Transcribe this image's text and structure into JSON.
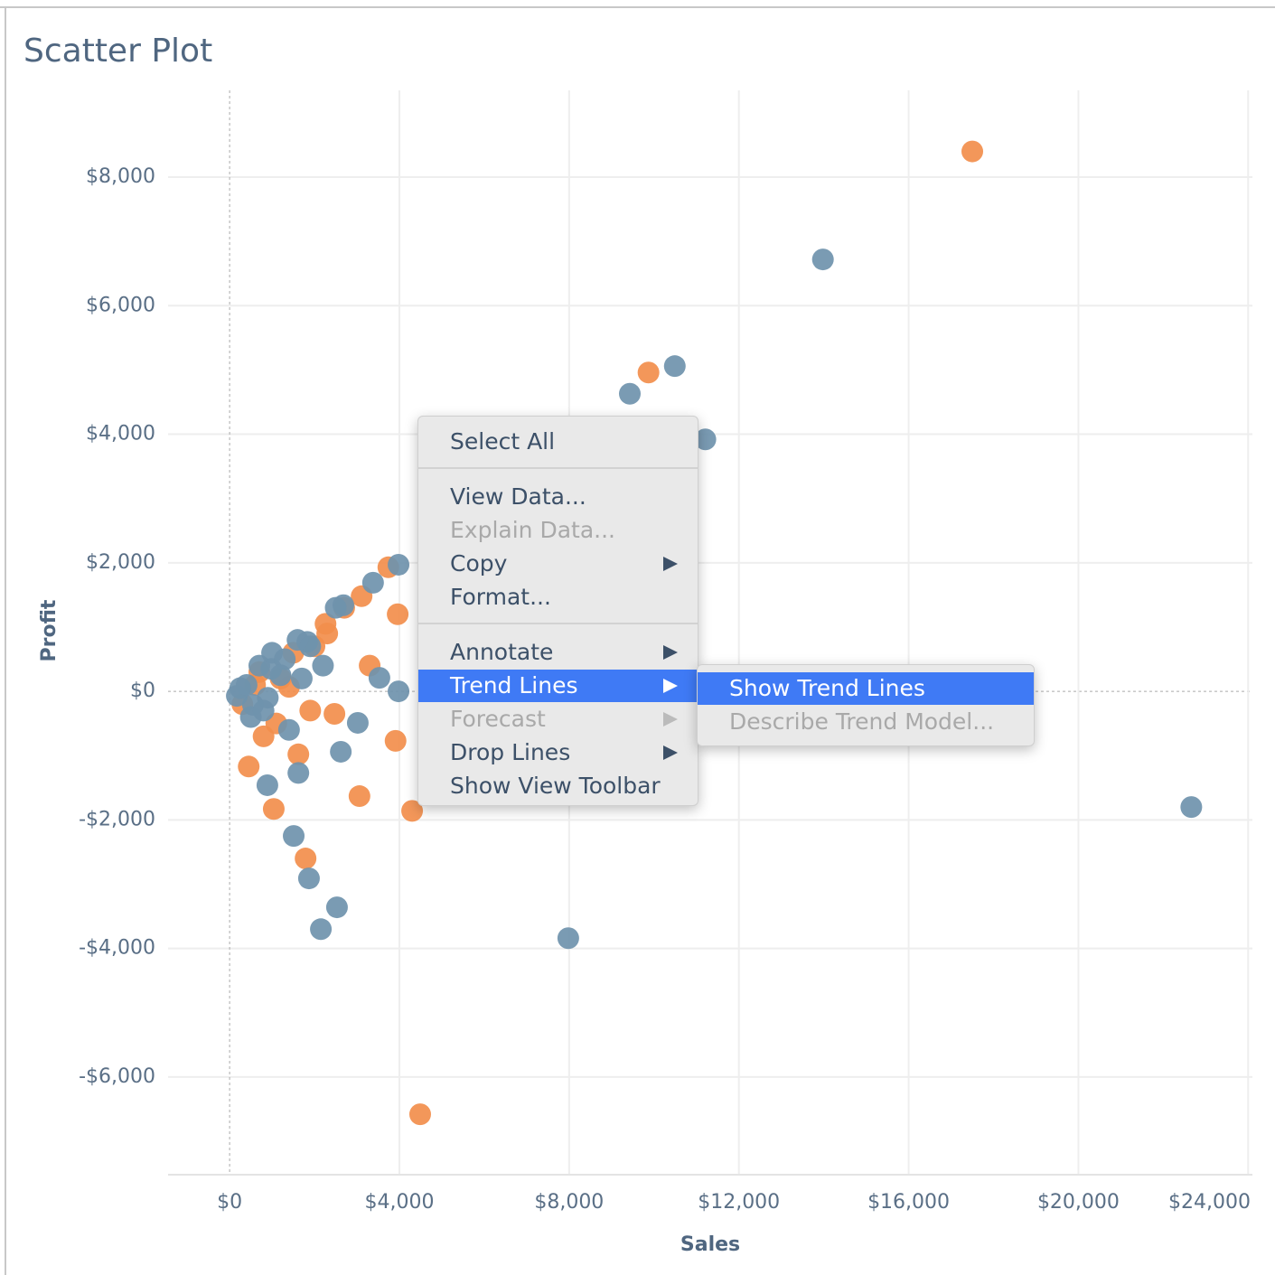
{
  "chart_data": {
    "type": "scatter",
    "title": "Scatter Plot",
    "x_label": "Sales",
    "y_label": "Profit",
    "xlim": [
      -1450,
      24100
    ],
    "ylim": [
      -7520,
      9350
    ],
    "xticks": [
      {
        "value": 0,
        "label": "$0"
      },
      {
        "value": 4000,
        "label": "$4,000"
      },
      {
        "value": 8000,
        "label": "$8,000"
      },
      {
        "value": 12000,
        "label": "$12,000"
      },
      {
        "value": 16000,
        "label": "$16,000"
      },
      {
        "value": 20000,
        "label": "$20,000"
      },
      {
        "value": 24000,
        "label": "$24,000"
      }
    ],
    "yticks": [
      {
        "value": -6000,
        "label": "-$6,000"
      },
      {
        "value": -4000,
        "label": "-$4,000"
      },
      {
        "value": -2000,
        "label": "-$2,000"
      },
      {
        "value": 0,
        "label": "$0"
      },
      {
        "value": 2000,
        "label": "$2,000"
      },
      {
        "value": 4000,
        "label": "$4,000"
      },
      {
        "value": 6000,
        "label": "$6,000"
      },
      {
        "value": 8000,
        "label": "$8,000"
      }
    ],
    "grid": true,
    "series": [
      {
        "color": "#f28e4c",
        "x": [
          17500,
          9870,
          4490,
          4300,
          3060,
          3910,
          1790,
          1040,
          450,
          3960,
          3740,
          3110,
          2260,
          1400,
          1620,
          2470,
          300,
          700,
          1100,
          1500,
          1900,
          2300,
          2700,
          3300,
          800,
          1200,
          600,
          2000
        ],
        "values": [
          8400,
          4960,
          -6580,
          -1860,
          -1630,
          -770,
          -2600,
          -1830,
          -1170,
          1200,
          1930,
          1480,
          1050,
          70,
          -980,
          -350,
          -200,
          300,
          -500,
          600,
          -300,
          900,
          1300,
          400,
          -700,
          200,
          100,
          700
        ]
      },
      {
        "color": "#6f93ad",
        "x": [
          13980,
          10490,
          9430,
          11210,
          22660,
          7980,
          2150,
          2530,
          1870,
          1510,
          890,
          1620,
          3020,
          2620,
          3980,
          3380,
          2680,
          3530,
          3980,
          550,
          980,
          1830,
          170,
          400,
          700,
          1000,
          1300,
          1600,
          1900,
          2200,
          2500,
          500,
          900,
          1200,
          1700,
          250,
          800,
          1400
        ],
        "values": [
          6720,
          5060,
          4630,
          3920,
          -1800,
          -3840,
          -3700,
          -3360,
          -2910,
          -2250,
          -1460,
          -1270,
          -490,
          -940,
          1970,
          1690,
          1340,
          210,
          0,
          -210,
          350,
          770,
          -70,
          100,
          400,
          600,
          500,
          800,
          700,
          400,
          1300,
          -400,
          -100,
          250,
          200,
          50,
          -300,
          -600
        ]
      }
    ]
  },
  "context_menu": {
    "groups": [
      [
        {
          "label": "Select All"
        }
      ],
      [
        {
          "label": "View Data..."
        },
        {
          "label": "Explain Data...",
          "disabled": true
        },
        {
          "label": "Copy",
          "submenu": true
        },
        {
          "label": "Format..."
        }
      ],
      [
        {
          "label": "Annotate",
          "submenu": true
        },
        {
          "label": "Trend Lines",
          "submenu": true,
          "highlighted": true
        },
        {
          "label": "Forecast",
          "submenu": true,
          "disabled": true
        },
        {
          "label": "Drop Lines",
          "submenu": true
        },
        {
          "label": "Show View Toolbar"
        }
      ]
    ]
  },
  "submenu": {
    "items": [
      {
        "label": "Show Trend Lines",
        "highlighted": true
      },
      {
        "label": "Describe Trend Model...",
        "disabled": true
      }
    ]
  }
}
